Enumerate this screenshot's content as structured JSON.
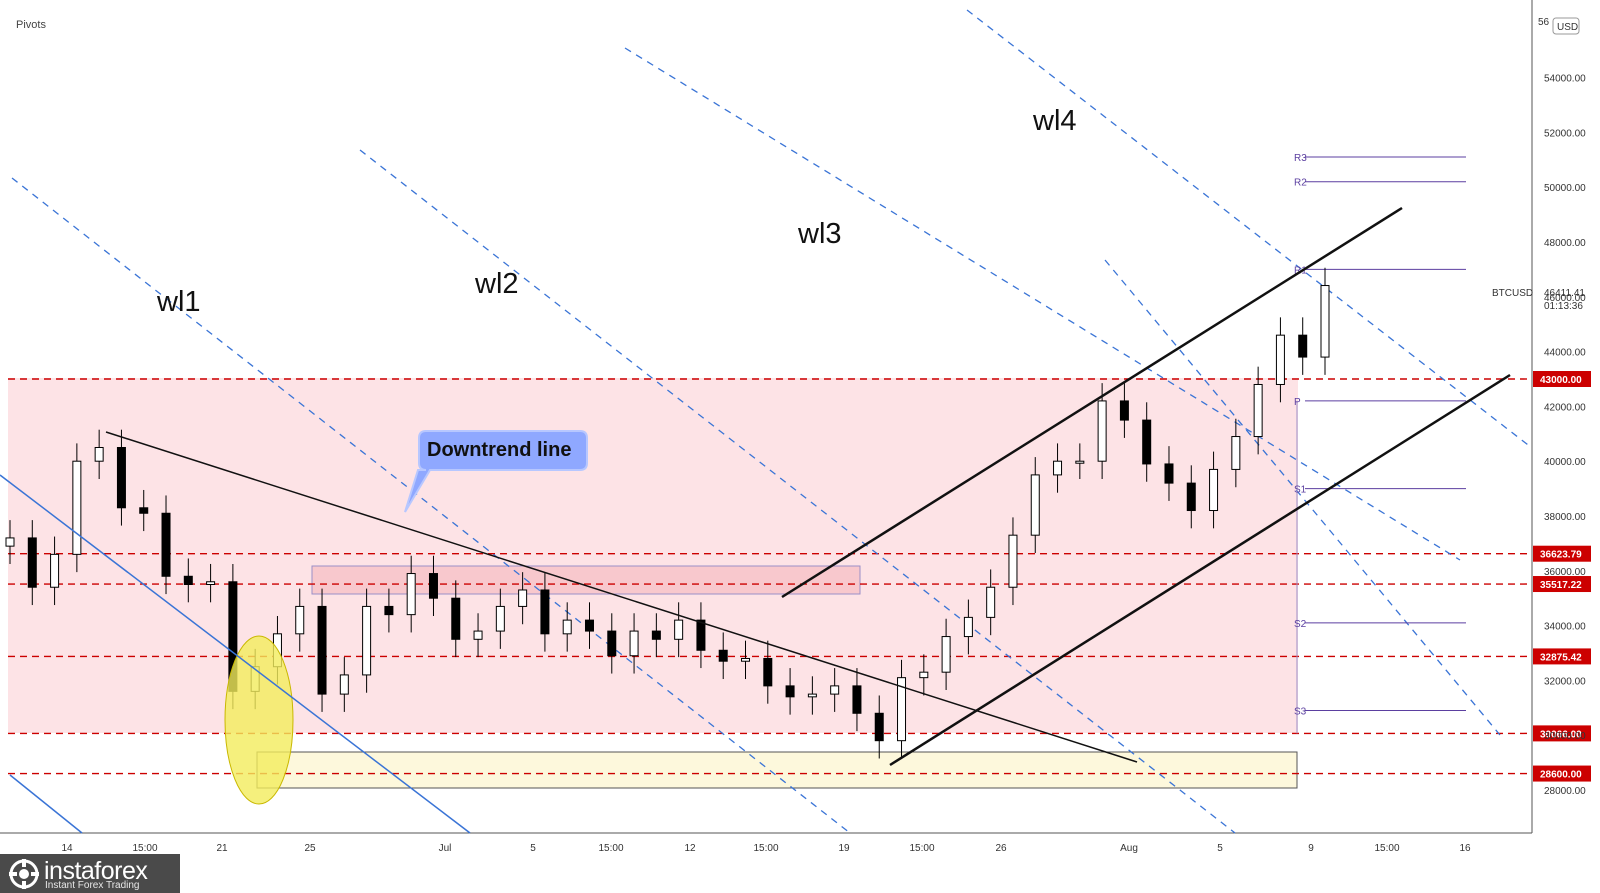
{
  "chart_data": {
    "type": "candlestick",
    "symbol": "BTCUSD",
    "indicator_label": "Pivots",
    "currency": "USD",
    "last_price": "46411.41",
    "countdown": "01:13:36",
    "ylim": [
      27000,
      57000
    ],
    "y_ticks": [
      28000,
      30000,
      32000,
      34000,
      36000,
      38000,
      40000,
      42000,
      44000,
      46000,
      48000,
      50000,
      52000,
      54000
    ],
    "y_tick_labels": [
      "28000.00",
      "30000.00",
      "32000.00",
      "34000.00",
      "36000.00",
      "38000.00",
      "40000.00",
      "42000.00",
      "44000.00",
      "46000.00",
      "48000.00",
      "50000.00",
      "52000.00",
      "54000.00"
    ],
    "y_top_partial": "56",
    "x_tick_labels": [
      "14",
      "15:00",
      "21",
      "25",
      "Jul",
      "5",
      "15:00",
      "12",
      "15:00",
      "19",
      "15:00",
      "26",
      "Aug",
      "5",
      "9",
      "15:00",
      "16"
    ],
    "price_series": [
      [
        "2021-06-11",
        37200
      ],
      [
        "2021-06-12",
        35400
      ],
      [
        "2021-06-13",
        36600
      ],
      [
        "2021-06-14",
        40000
      ],
      [
        "2021-06-15",
        40500
      ],
      [
        "2021-06-16",
        38300
      ],
      [
        "2021-06-17",
        38100
      ],
      [
        "2021-06-18",
        35800
      ],
      [
        "2021-06-19",
        35500
      ],
      [
        "2021-06-20",
        35600
      ],
      [
        "2021-06-21",
        31600
      ],
      [
        "2021-06-22",
        32500
      ],
      [
        "2021-06-23",
        33700
      ],
      [
        "2021-06-24",
        34700
      ],
      [
        "2021-06-25",
        31500
      ],
      [
        "2021-06-26",
        32200
      ],
      [
        "2021-06-27",
        34700
      ],
      [
        "2021-06-28",
        34400
      ],
      [
        "2021-06-29",
        35900
      ],
      [
        "2021-06-30",
        35000
      ],
      [
        "2021-07-01",
        33500
      ],
      [
        "2021-07-02",
        33800
      ],
      [
        "2021-07-03",
        34700
      ],
      [
        "2021-07-04",
        35300
      ],
      [
        "2021-07-05",
        33700
      ],
      [
        "2021-07-06",
        34200
      ],
      [
        "2021-07-07",
        33800
      ],
      [
        "2021-07-08",
        32900
      ],
      [
        "2021-07-09",
        33800
      ],
      [
        "2021-07-10",
        33500
      ],
      [
        "2021-07-11",
        34200
      ],
      [
        "2021-07-12",
        33100
      ],
      [
        "2021-07-13",
        32700
      ],
      [
        "2021-07-14",
        32800
      ],
      [
        "2021-07-15",
        31800
      ],
      [
        "2021-07-16",
        31400
      ],
      [
        "2021-07-17",
        31500
      ],
      [
        "2021-07-18",
        31800
      ],
      [
        "2021-07-19",
        30800
      ],
      [
        "2021-07-20",
        29800
      ],
      [
        "2021-07-21",
        32100
      ],
      [
        "2021-07-22",
        32300
      ],
      [
        "2021-07-23",
        33600
      ],
      [
        "2021-07-24",
        34300
      ],
      [
        "2021-07-25",
        35400
      ],
      [
        "2021-07-26",
        37300
      ],
      [
        "2021-07-27",
        39500
      ],
      [
        "2021-07-28",
        40000
      ],
      [
        "2021-07-29",
        40000
      ],
      [
        "2021-07-30",
        42200
      ],
      [
        "2021-07-31",
        41500
      ],
      [
        "2021-08-01",
        39900
      ],
      [
        "2021-08-02",
        39200
      ],
      [
        "2021-08-03",
        38200
      ],
      [
        "2021-08-04",
        39700
      ],
      [
        "2021-08-05",
        40900
      ],
      [
        "2021-08-06",
        42800
      ],
      [
        "2021-08-07",
        44600
      ],
      [
        "2021-08-08",
        43800
      ],
      [
        "2021-08-09",
        46411
      ]
    ],
    "horizontal_levels": [
      {
        "value": 43000,
        "label": "43000.00"
      },
      {
        "value": 36623.79,
        "label": "36623.79"
      },
      {
        "value": 35517.22,
        "label": "35517.22"
      },
      {
        "value": 32875.42,
        "label": "32875.42"
      },
      {
        "value": 30066,
        "label": "30066.00"
      },
      {
        "value": 28600,
        "label": "28600.00"
      }
    ],
    "pivot_levels": [
      {
        "name": "R3",
        "value": 51100
      },
      {
        "name": "R2",
        "value": 50200
      },
      {
        "name": "R1",
        "value": 47000
      },
      {
        "name": "P",
        "value": 42200
      },
      {
        "name": "S1",
        "value": 39000
      },
      {
        "name": "S2",
        "value": 34100
      },
      {
        "name": "S3",
        "value": 30900
      }
    ],
    "annotations": {
      "wave_lines": [
        "wl1",
        "wl2",
        "wl3",
        "wl4"
      ],
      "callout": "Downtrend line"
    },
    "colors": {
      "up": "#26a69a",
      "down": "#ef5350",
      "candle": "#000000",
      "level_line": "#cc0000",
      "zone_fill": "#fde3e6",
      "support_fill": "#fdf8dc",
      "wave_line": "#3a74d6",
      "pivot_line": "#5b3fa0",
      "callout_fill": "#8fa8ff",
      "highlight": "#f3ec5c"
    },
    "grid": false
  },
  "branding": {
    "name": "instaforex",
    "tagline": "Instant Forex Trading"
  }
}
